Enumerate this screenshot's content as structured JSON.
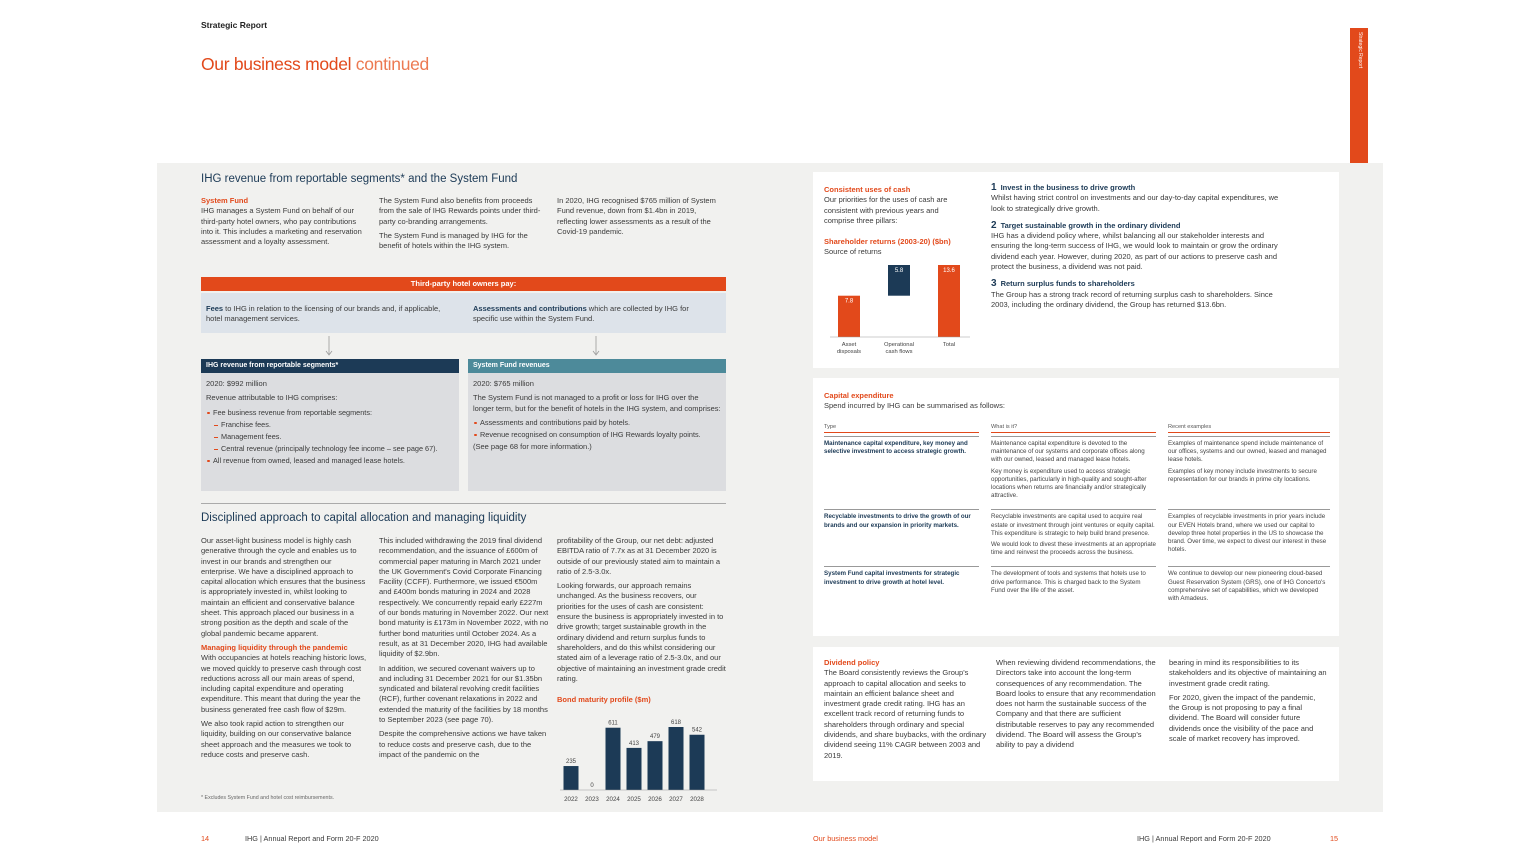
{
  "header": {
    "section": "Strategic Report",
    "title": "Our business model",
    "title_suffix": "continued",
    "tab": "Strategic Report"
  },
  "left": {
    "revenue": {
      "heading": "IHG revenue from reportable segments* and the System Fund",
      "columns": [
        [
          {
            "h": "System Fund"
          },
          {
            "p": "IHG manages a System Fund on behalf of our third-party hotel owners, who pay contributions into it. This includes a marketing and reservation assessment and a loyalty assessment."
          }
        ],
        [
          {
            "p": "The System Fund also benefits from proceeds from the sale of IHG Rewards points under third-party co-branding arrangements."
          },
          {
            "p": "The System Fund is managed by IHG for the benefit of hotels within the IHG system."
          }
        ],
        [
          {
            "p": "In 2020, IHG recognised $765 million of System Fund revenue, down from $1.4bn in 2019, reflecting lower assessments as a result of the Covid-19 pandemic."
          }
        ]
      ],
      "banner": "Third-party hotel owners pay:",
      "pays": [
        [
          {
            "b": "Fees",
            "p": "to IHG in relation to the licensing of our brands and, if applicable, hotel management services."
          }
        ],
        [
          {
            "b": "Assessments and contributions",
            "p": "which are collected by IHG for specific use within the System Fund."
          }
        ]
      ],
      "boxes": [
        {
          "title": "IHG revenue from reportable segments*",
          "items": [
            {
              "p": "2020: $992 million"
            },
            {
              "p": "Revenue attributable to IHG comprises:"
            },
            {
              "li": "Fee business revenue from reportable segments:"
            },
            {
              "sub": "Franchise fees."
            },
            {
              "sub": "Management fees."
            },
            {
              "sub": "Central revenue (principally technology fee income – see page 67)."
            },
            {
              "li": "All revenue from owned, leased and managed lease hotels."
            }
          ]
        },
        {
          "title": "System Fund revenues",
          "items": [
            {
              "p": "2020: $765 million"
            },
            {
              "p": "The System Fund is not managed to a profit or loss for IHG over the longer term, but for the benefit of hotels in the IHG system, and comprises:"
            },
            {
              "li": "Assessments and contributions paid by hotels."
            },
            {
              "li": "Revenue recognised on consumption of IHG Rewards loyalty points."
            },
            {
              "p": "(See page 68 for more information.)"
            }
          ]
        }
      ]
    },
    "capital": {
      "heading": "Disciplined approach to capital allocation and managing liquidity",
      "columns": [
        [
          {
            "p": "Our asset-light business model is highly cash generative through the cycle and enables us to invest in our brands and strengthen our enterprise. We have a disciplined approach to capital allocation which ensures that the business is appropriately invested in, whilst looking to maintain an efficient and conservative balance sheet. This approach placed our business in a strong position as the depth and scale of the global pandemic became apparent."
          },
          {
            "h": "Managing liquidity through the pandemic"
          },
          {
            "p": "With occupancies at hotels reaching historic lows, we moved quickly to preserve cash through cost reductions across all our main areas of spend, including capital expenditure and operating expenditure. This meant that during the year the business generated free cash flow of $29m."
          },
          {
            "p": "We also took rapid action to strengthen our liquidity, building on our conservative balance sheet approach and the measures we took to reduce costs and preserve cash."
          }
        ],
        [
          {
            "p": "This included withdrawing the 2019 final dividend recommendation, and the issuance of £600m of commercial paper maturing in March 2021 under the UK Government's Covid Corporate Financing Facility (CCFF). Furthermore, we issued €500m and £400m bonds maturing in 2024 and 2028 respectively. We concurrently repaid early £227m of our bonds maturing in November 2022. Our next bond maturity is £173m in November 2022, with no further bond maturities until October 2024. As a result, as at 31 December 2020, IHG had available liquidity of $2.9bn."
          },
          {
            "p": "In addition, we secured covenant waivers up to and including 31 December 2021 for our $1.35bn syndicated and bilateral revolving credit facilities (RCF), further covenant relaxations in 2022 and extended the maturity of the facilities by 18 months to September 2023 (see page 70)."
          },
          {
            "p": "Despite the comprehensive actions we have taken to reduce costs and preserve cash, due to the impact of the pandemic on the"
          }
        ],
        [
          {
            "p": "profitability of the Group, our net debt: adjusted EBITDA ratio of 7.7x as at 31 December 2020 is outside of our previously stated aim to maintain a ratio of 2.5-3.0x."
          },
          {
            "p": "Looking forwards, our approach remains unchanged. As the business recovers, our priorities for the uses of cash are consistent: ensure the business is appropriately invested in to drive growth; target sustainable growth in the ordinary dividend and return surplus funds to shareholders, and do this whilst considering our stated aim of a leverage ratio of 2.5-3.0x, and our objective of maintaining an investment grade credit rating."
          }
        ]
      ],
      "bond_chart": {
        "title": "Bond maturity profile ($m)",
        "categories": [
          "2022",
          "2023",
          "2024",
          "2025",
          "2026",
          "2027",
          "2028"
        ],
        "values": [
          235,
          0,
          611,
          413,
          479,
          618,
          542
        ],
        "color": "#1c3a56"
      }
    },
    "footnote": "* Excludes System Fund and hotel cost reimbursements."
  },
  "right": {
    "cash": {
      "columns": [
        [
          {
            "h": "Consistent uses of cash"
          },
          {
            "p": "Our priorities for the uses of cash are consistent with previous years and comprise three pillars:"
          }
        ],
        [
          {
            "n": "1",
            "h": "Invest in the business to drive growth",
            "p": "Whilst having strict control on investments and our day-to-day capital expenditures, we look to strategically drive growth."
          },
          {
            "n": "2",
            "h": "Target sustainable growth in the ordinary dividend",
            "p": "IHG has a dividend policy where, whilst balancing all our stakeholder interests and ensuring the long-term success of IHG, we would look to maintain or grow the ordinary dividend each year. However, during 2020, as part of our actions to preserve cash and protect the business, a dividend was not paid."
          },
          {
            "n": "3",
            "h": "Return surplus funds to shareholders",
            "p": "The Group has a strong track record of returning surplus cash to shareholders. Since 2003, including the ordinary dividend, the Group has returned $13.6bn."
          }
        ]
      ],
      "chart": {
        "title": "Shareholder returns (2003-20) ($bn)",
        "subtitle": "Source of returns",
        "categories": [
          "Asset disposals",
          "Operational cash flows",
          "Total"
        ],
        "values": [
          7.8,
          5.8,
          13.6
        ],
        "colors": [
          "#e2491b",
          "#1c3a56",
          "#e2491b"
        ]
      }
    },
    "capex": {
      "heading": "Capital expenditure",
      "intro": "Spend incurred by IHG can be summarised as follows:",
      "table": {
        "headers": [
          "Type",
          "What is it?",
          "Recent examples"
        ],
        "rows": [
          [
            [
              "Maintenance capital expenditure, key money and selective investment to access strategic growth."
            ],
            [
              "Maintenance capital expenditure is devoted to the maintenance of our systems and corporate offices along with our owned, leased and managed lease hotels.",
              "Key money is expenditure used to access strategic opportunities, particularly in high-quality and sought-after locations when returns are financially and/or strategically attractive."
            ],
            [
              "Examples of maintenance spend include maintenance of our offices, systems and our owned, leased and managed lease hotels.",
              "Examples of key money include investments to secure representation for our brands in prime city locations."
            ]
          ],
          [
            [
              "Recyclable investments to drive the growth of our brands and our expansion in priority markets."
            ],
            [
              "Recyclable investments are capital used to acquire real estate or investment through joint ventures or equity capital. This expenditure is strategic to help build brand presence.",
              "We would look to divest these investments at an appropriate time and reinvest the proceeds across the business."
            ],
            [
              "Examples of recyclable investments in prior years include our EVEN Hotels brand, where we used our capital to develop three hotel properties in the US to showcase the brand. Over time, we expect to divest our interest in these hotels."
            ]
          ],
          [
            [
              "System Fund capital investments for strategic investment to drive growth at hotel level."
            ],
            [
              "The development of tools and systems that hotels use to drive performance. This is charged back to the System Fund over the life of the asset."
            ],
            [
              "We continue to develop our new pioneering cloud-based Guest Reservation System (GRS), one of IHG Concerto's comprehensive set of capabilities, which we developed with Amadeus."
            ]
          ]
        ]
      }
    },
    "dividend": {
      "columns": [
        [
          {
            "h": "Dividend policy"
          },
          {
            "p": "The Board consistently reviews the Group's approach to capital allocation and seeks to maintain an efficient balance sheet and investment grade credit rating. IHG has an excellent track record of returning funds to shareholders through ordinary and special dividends, and share buybacks, with the ordinary dividend seeing 11% CAGR between 2003 and 2019."
          }
        ],
        [
          {
            "p": "When reviewing dividend recommendations, the Directors take into account the long-term consequences of any recommendation. The Board looks to ensure that any recommendation does not harm the sustainable success of the Company and that there are sufficient distributable reserves to pay any recommended dividend. The Board will assess the Group's ability to pay a dividend"
          }
        ],
        [
          {
            "p": "bearing in mind its responsibilities to its stakeholders and its objective of maintaining an investment grade credit rating."
          },
          {
            "p": "For 2020, given the impact of the pandemic, the Group is not proposing to pay a final dividend. The Board will consider future dividends once the visibility of the pace and scale of market recovery has improved."
          }
        ]
      ]
    }
  },
  "footer": {
    "left_page": "14",
    "left_text": "IHG | Annual Report and Form 20-F 2020",
    "right_section": "Our business model",
    "right_text": "IHG | Annual Report and Form 20-F 2020",
    "right_page": "15"
  }
}
